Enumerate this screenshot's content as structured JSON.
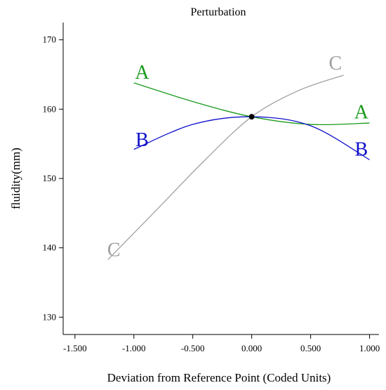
{
  "chart_data": {
    "type": "line",
    "title": "Perturbation",
    "xlabel": "Deviation from Reference Point (Coded Units)",
    "ylabel": "fluidity(mm)",
    "xlim": [
      -1.6,
      1.08
    ],
    "ylim": [
      127.5,
      172.5
    ],
    "xticks": [
      -1.5,
      -1.0,
      -0.5,
      0.0,
      0.5,
      1.0
    ],
    "xtick_labels": [
      "-1.500",
      "-1.000",
      "-0.500",
      "0.000",
      "0.500",
      "1.000"
    ],
    "yticks": [
      130,
      140,
      150,
      160,
      170
    ],
    "ytick_labels": [
      "130",
      "140",
      "150",
      "160",
      "170"
    ],
    "reference_point": {
      "x": 0.0,
      "y": 158.9
    },
    "series": [
      {
        "name": "A",
        "color": "#1a9a1a",
        "x": [
          -1.0,
          -0.5,
          0.0,
          0.5,
          1.0
        ],
        "y": [
          163.8,
          161.1,
          158.9,
          157.8,
          158.0
        ]
      },
      {
        "name": "B",
        "color": "#1010cc",
        "x": [
          -1.0,
          -0.5,
          0.0,
          0.5,
          1.0
        ],
        "y": [
          154.2,
          157.8,
          158.9,
          157.6,
          152.7
        ]
      },
      {
        "name": "C",
        "color": "#a0a0a0",
        "x": [
          -1.22,
          -0.8,
          -0.4,
          0.0,
          0.4,
          0.78
        ],
        "y": [
          138.3,
          145.6,
          152.6,
          158.9,
          162.7,
          164.9
        ]
      }
    ],
    "end_labels": [
      {
        "text": "A",
        "series": "A",
        "x": -0.93,
        "y": 165.4
      },
      {
        "text": "A",
        "series": "A",
        "x": 0.93,
        "y": 159.7
      },
      {
        "text": "B",
        "series": "B",
        "x": -0.93,
        "y": 155.7
      },
      {
        "text": "B",
        "series": "B",
        "x": 0.93,
        "y": 154.3
      },
      {
        "text": "C",
        "series": "C",
        "x": -1.17,
        "y": 139.8
      },
      {
        "text": "C",
        "series": "C",
        "x": 0.71,
        "y": 166.7
      }
    ]
  }
}
